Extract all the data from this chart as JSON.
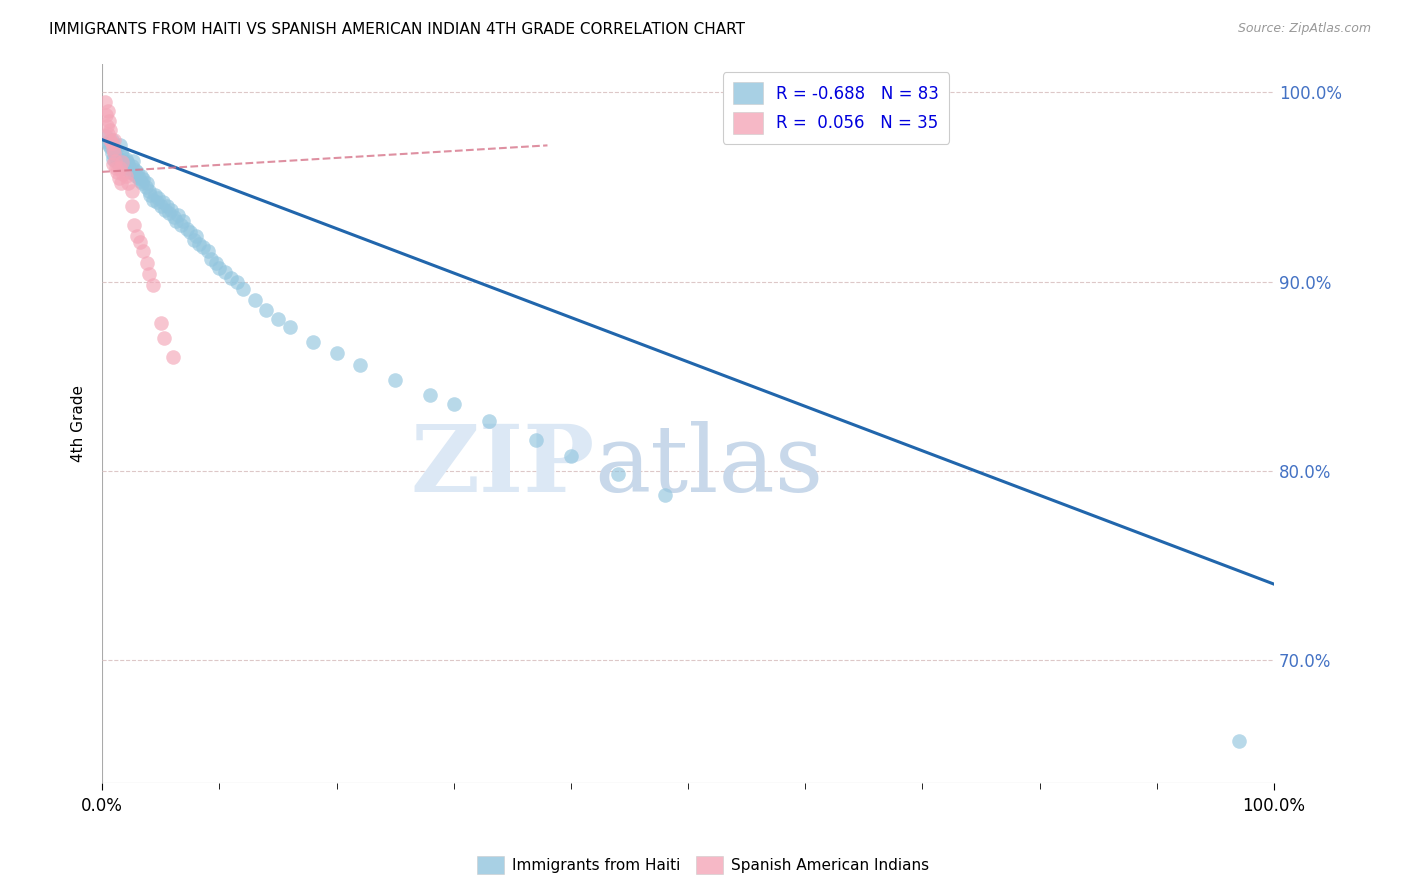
{
  "title": "IMMIGRANTS FROM HAITI VS SPANISH AMERICAN INDIAN 4TH GRADE CORRELATION CHART",
  "source": "Source: ZipAtlas.com",
  "ylabel": "4th Grade",
  "xlim": [
    0,
    1.0
  ],
  "ylim": [
    0.635,
    1.015
  ],
  "yticks": [
    0.7,
    0.8,
    0.9,
    1.0
  ],
  "ytick_labels": [
    "70.0%",
    "80.0%",
    "90.0%",
    "100.0%"
  ],
  "blue_color": "#92c5de",
  "pink_color": "#f4a6b8",
  "trend_blue": "#2166ac",
  "trend_pink": "#d6748a",
  "watermark_zip": "ZIP",
  "watermark_atlas": "atlas",
  "watermark_color": "#dce8f5",
  "blue_scatter_x": [
    0.003,
    0.005,
    0.006,
    0.007,
    0.008,
    0.008,
    0.009,
    0.01,
    0.011,
    0.012,
    0.013,
    0.014,
    0.015,
    0.016,
    0.016,
    0.017,
    0.018,
    0.019,
    0.02,
    0.021,
    0.022,
    0.023,
    0.024,
    0.025,
    0.026,
    0.027,
    0.028,
    0.029,
    0.03,
    0.031,
    0.032,
    0.033,
    0.034,
    0.035,
    0.037,
    0.038,
    0.04,
    0.041,
    0.043,
    0.045,
    0.047,
    0.048,
    0.05,
    0.052,
    0.054,
    0.055,
    0.057,
    0.059,
    0.061,
    0.063,
    0.065,
    0.067,
    0.069,
    0.072,
    0.075,
    0.078,
    0.08,
    0.083,
    0.086,
    0.09,
    0.093,
    0.097,
    0.1,
    0.105,
    0.11,
    0.115,
    0.12,
    0.13,
    0.14,
    0.15,
    0.16,
    0.18,
    0.2,
    0.22,
    0.25,
    0.28,
    0.3,
    0.33,
    0.37,
    0.4,
    0.44,
    0.48,
    0.97
  ],
  "blue_scatter_y": [
    0.977,
    0.974,
    0.972,
    0.971,
    0.968,
    0.975,
    0.965,
    0.97,
    0.968,
    0.966,
    0.963,
    0.965,
    0.972,
    0.968,
    0.964,
    0.967,
    0.962,
    0.96,
    0.965,
    0.963,
    0.962,
    0.96,
    0.958,
    0.961,
    0.964,
    0.957,
    0.959,
    0.956,
    0.958,
    0.955,
    0.953,
    0.956,
    0.952,
    0.954,
    0.95,
    0.952,
    0.948,
    0.946,
    0.943,
    0.946,
    0.942,
    0.944,
    0.94,
    0.942,
    0.938,
    0.94,
    0.936,
    0.938,
    0.934,
    0.932,
    0.935,
    0.93,
    0.932,
    0.928,
    0.926,
    0.922,
    0.924,
    0.92,
    0.918,
    0.916,
    0.912,
    0.91,
    0.907,
    0.905,
    0.902,
    0.9,
    0.896,
    0.89,
    0.885,
    0.88,
    0.876,
    0.868,
    0.862,
    0.856,
    0.848,
    0.84,
    0.835,
    0.826,
    0.816,
    0.808,
    0.798,
    0.787,
    0.657
  ],
  "pink_scatter_x": [
    0.002,
    0.003,
    0.004,
    0.005,
    0.005,
    0.006,
    0.007,
    0.007,
    0.008,
    0.009,
    0.009,
    0.01,
    0.01,
    0.011,
    0.012,
    0.013,
    0.014,
    0.015,
    0.016,
    0.017,
    0.018,
    0.02,
    0.022,
    0.025,
    0.025,
    0.027,
    0.03,
    0.032,
    0.035,
    0.038,
    0.04,
    0.043,
    0.05,
    0.053,
    0.06
  ],
  "pink_scatter_y": [
    0.995,
    0.988,
    0.982,
    0.978,
    0.99,
    0.985,
    0.975,
    0.98,
    0.973,
    0.97,
    0.962,
    0.968,
    0.975,
    0.964,
    0.96,
    0.958,
    0.955,
    0.96,
    0.952,
    0.963,
    0.957,
    0.956,
    0.952,
    0.948,
    0.94,
    0.93,
    0.924,
    0.921,
    0.916,
    0.91,
    0.904,
    0.898,
    0.878,
    0.87,
    0.86
  ],
  "blue_line_x": [
    0.0,
    1.0
  ],
  "blue_line_y": [
    0.975,
    0.74
  ],
  "pink_line_x": [
    0.0,
    0.38
  ],
  "pink_line_y": [
    0.958,
    0.972
  ]
}
